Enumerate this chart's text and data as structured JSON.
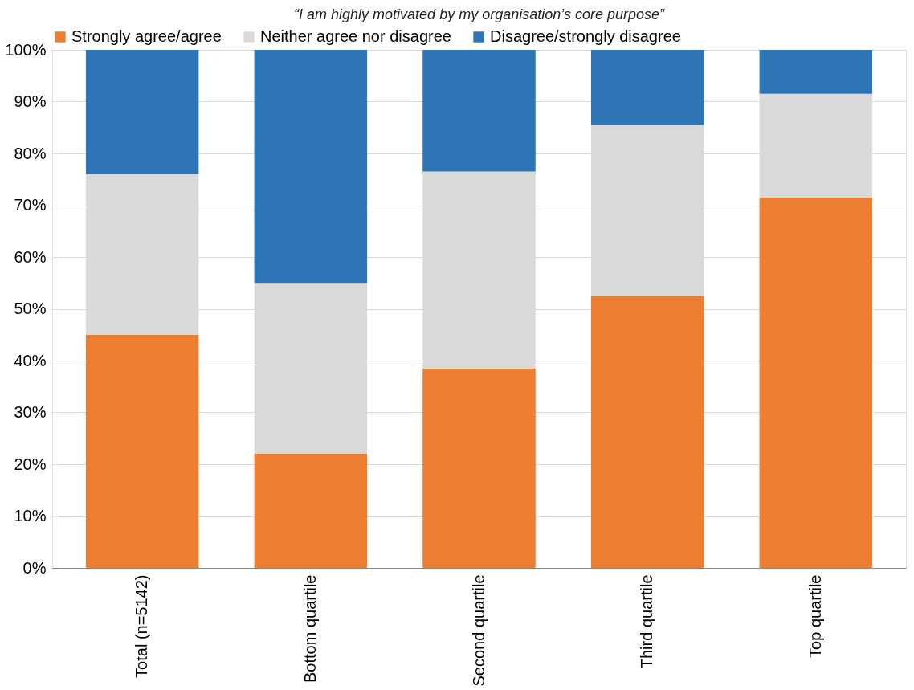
{
  "chart_data": {
    "type": "bar",
    "title": "“I am highly motivated by my organisation’s core purpose”",
    "categories": [
      "Total (n=5142)",
      "Bottom quartile",
      "Second quartile",
      "Third quartile",
      "Top quartile"
    ],
    "stacked": true,
    "series": [
      {
        "name": "Strongly agree/agree",
        "color": "#ed7d31",
        "values": [
          45,
          22,
          38.5,
          52.5,
          71.5
        ]
      },
      {
        "name": "Neither agree nor disagree",
        "color": "#d9d9d9",
        "values": [
          31,
          33,
          38,
          33,
          20
        ]
      },
      {
        "name": "Disagree/strongly disagree",
        "color": "#2e75b6",
        "values": [
          24,
          45,
          23.5,
          14.5,
          8.5
        ]
      }
    ],
    "ylim": [
      0,
      100
    ],
    "yticks": [
      {
        "value": 0,
        "label": "0%"
      },
      {
        "value": 10,
        "label": "10%"
      },
      {
        "value": 20,
        "label": "20%"
      },
      {
        "value": 30,
        "label": "30%"
      },
      {
        "value": 40,
        "label": "40%"
      },
      {
        "value": 50,
        "label": "50%"
      },
      {
        "value": 60,
        "label": "60%"
      },
      {
        "value": 70,
        "label": "70%"
      },
      {
        "value": 80,
        "label": "80%"
      },
      {
        "value": 90,
        "label": "90%"
      },
      {
        "value": 100,
        "label": "100%"
      }
    ],
    "grid": "y",
    "legend": "top"
  }
}
